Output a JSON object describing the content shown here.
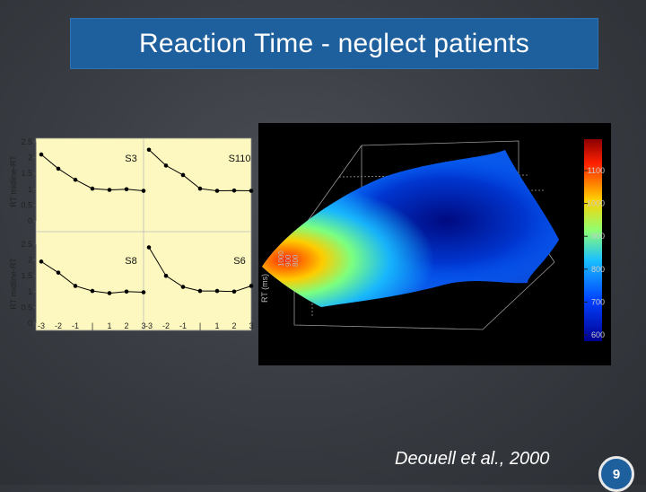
{
  "slide": {
    "title": "Reaction Time - neglect patients",
    "citation": "Deouell et al., 2000",
    "page_number": "9"
  },
  "chart_data": {
    "type": "line",
    "ylabel": "RT midline-RT",
    "ylim": [
      0,
      2.5
    ],
    "yticks": [
      "2.5",
      "2",
      "1.5",
      "1",
      "0.5",
      "0"
    ],
    "xticks": [
      "-3",
      "-2",
      "-1",
      "|",
      "1",
      "2",
      "3"
    ],
    "x": [
      -3,
      -2,
      -1,
      0,
      1,
      2,
      3
    ],
    "panels": [
      {
        "name": "S3",
        "values": [
          2.1,
          1.65,
          1.3,
          1.02,
          0.98,
          1.0,
          0.95
        ]
      },
      {
        "name": "S110",
        "values": [
          2.25,
          1.75,
          1.45,
          1.02,
          0.95,
          0.96,
          0.95
        ]
      },
      {
        "name": "S8",
        "values": [
          1.95,
          1.6,
          1.18,
          1.02,
          0.95,
          1.0,
          0.98
        ]
      },
      {
        "name": "S6",
        "values": [
          2.4,
          1.5,
          1.15,
          1.02,
          1.02,
          1.0,
          1.18
        ]
      }
    ]
  },
  "surface_plot": {
    "zlabel": "RT (ms)",
    "colorbar_ticks": [
      "1100",
      "1000",
      "900",
      "800",
      "700",
      "600"
    ],
    "colors": {
      "low": "#00008f",
      "mid": "#19c0ff",
      "high": "#c00000"
    }
  }
}
